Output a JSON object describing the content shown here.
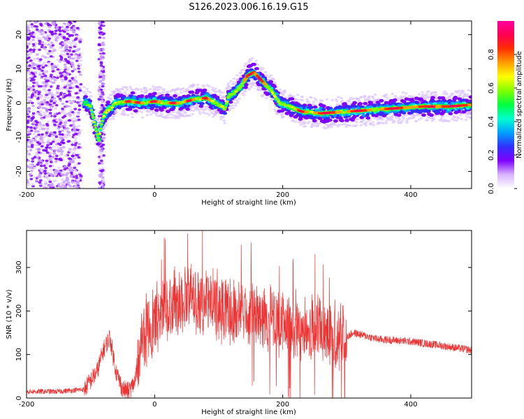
{
  "title": "S126.2023.006.16.19.G15",
  "chart_data": [
    {
      "type": "heatmap",
      "xlabel": "Height of straight line (km)",
      "ylabel": "Frequency (Hz)",
      "xlim": [
        -200,
        495
      ],
      "ylim": [
        -25,
        24
      ],
      "xticks": [
        -200,
        0,
        200,
        400
      ],
      "yticks": [
        -20,
        -10,
        0,
        10,
        20
      ],
      "colorbar": {
        "label": "Normalized spectral amplitude",
        "range": [
          0.0,
          1.0
        ],
        "ticks": [
          "0.0",
          "0.2",
          "0.4",
          "0.6",
          "0.8"
        ],
        "colors": [
          "#ffffff",
          "#d8b4ff",
          "#8000ff",
          "#3030ff",
          "#00a0ff",
          "#00ffd0",
          "#00ff40",
          "#80ff00",
          "#ffff00",
          "#ffa000",
          "#ff3000",
          "#ff0050",
          "#ff00a0"
        ]
      },
      "ridge": {
        "name": "frequency ridge",
        "x": [
          -115,
          -100,
          -95,
          -90,
          -87,
          -83,
          -78,
          -72,
          -60,
          -40,
          -20,
          0,
          20,
          40,
          60,
          80,
          95,
          105,
          110,
          115,
          125,
          135,
          145,
          155,
          165,
          175,
          185,
          195,
          210,
          230,
          260,
          300,
          340,
          380,
          420,
          460,
          495
        ],
        "y": [
          1,
          -1,
          -5,
          -9,
          -11,
          -6,
          -3,
          -2,
          0,
          0.5,
          0,
          0.5,
          0,
          0,
          1,
          1.5,
          0,
          -1,
          -2,
          2,
          3,
          5,
          8,
          9,
          7,
          5,
          3,
          0,
          -1,
          -2.5,
          -3,
          -2.5,
          -2,
          -1.5,
          -1,
          -1,
          -0.5
        ]
      }
    },
    {
      "type": "line",
      "xlabel": "Height of straight line (km)",
      "ylabel": "SNR (10 * v/v)",
      "xlim": [
        -200,
        495
      ],
      "ylim": [
        0,
        385
      ],
      "xticks": [
        -200,
        0,
        200,
        400
      ],
      "yticks": [
        0,
        100,
        200,
        300
      ],
      "line_color": "#ee3333",
      "series": [
        {
          "x": [
            -200,
            -150,
            -110,
            -90,
            -80,
            -70,
            -60,
            -50,
            -40,
            -30,
            -20,
            0,
            25,
            50,
            75,
            100,
            125,
            150,
            175,
            200,
            225,
            250,
            275,
            300,
            310,
            350,
            400,
            450,
            495
          ],
          "y": [
            15,
            15,
            20,
            60,
            110,
            140,
            60,
            20,
            15,
            40,
            140,
            180,
            220,
            230,
            225,
            210,
            200,
            195,
            190,
            170,
            160,
            165,
            150,
            140,
            150,
            135,
            130,
            120,
            110
          ]
        }
      ]
    }
  ]
}
